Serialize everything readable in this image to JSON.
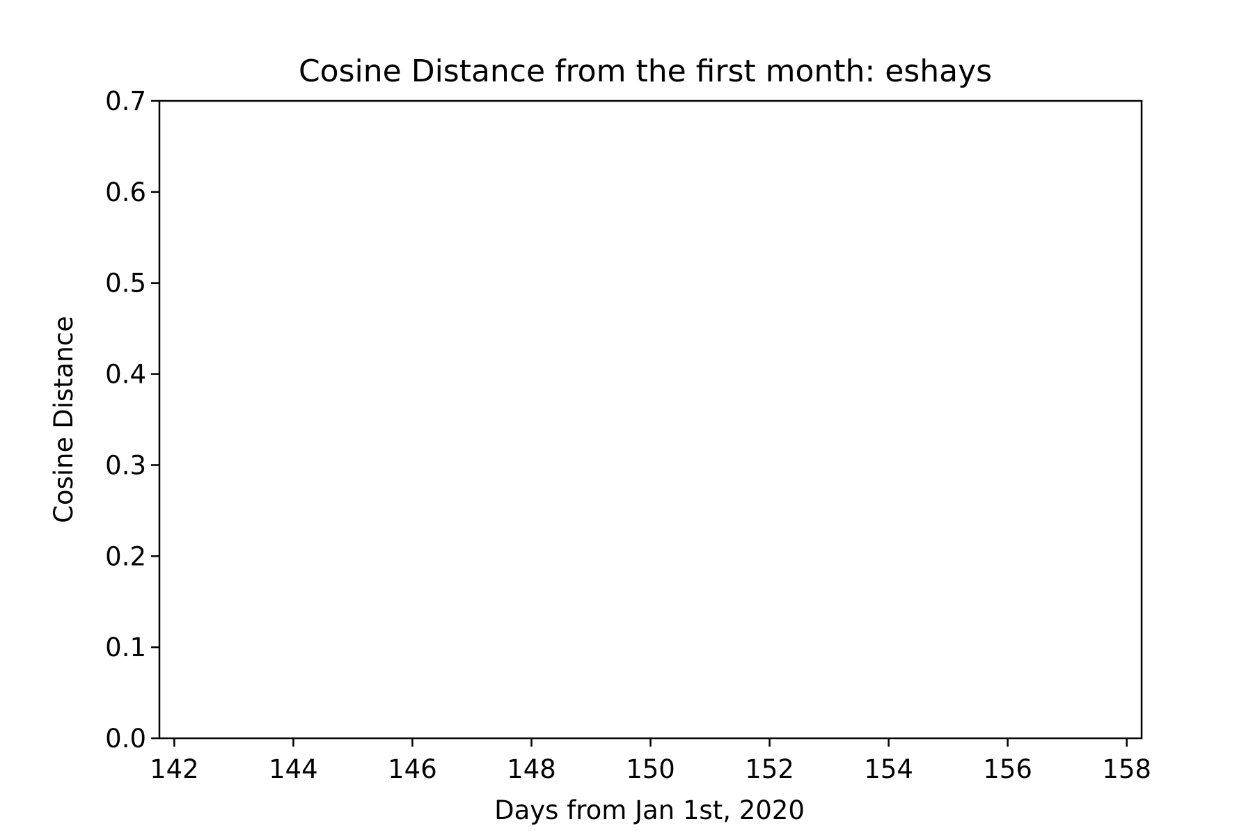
{
  "chart_data": {
    "type": "line",
    "title": "Cosine Distance from the first month: eshays",
    "xlabel": "Days from Jan 1st, 2020",
    "ylabel": "Cosine Distance",
    "xlim": [
      141.75,
      158.25
    ],
    "ylim": [
      0.0,
      0.7
    ],
    "xticks": [
      142,
      144,
      146,
      148,
      150,
      152,
      154,
      156,
      158
    ],
    "xtick_labels": [
      "142",
      "144",
      "146",
      "148",
      "150",
      "152",
      "154",
      "156",
      "158"
    ],
    "yticks": [
      0.0,
      0.1,
      0.2,
      0.3,
      0.4,
      0.5,
      0.6,
      0.7
    ],
    "ytick_labels": [
      "0.0",
      "0.1",
      "0.2",
      "0.3",
      "0.4",
      "0.5",
      "0.6",
      "0.7"
    ],
    "grid": false,
    "legend": "none",
    "series": []
  },
  "colors": {
    "axis": "#000000",
    "background": "#ffffff"
  }
}
